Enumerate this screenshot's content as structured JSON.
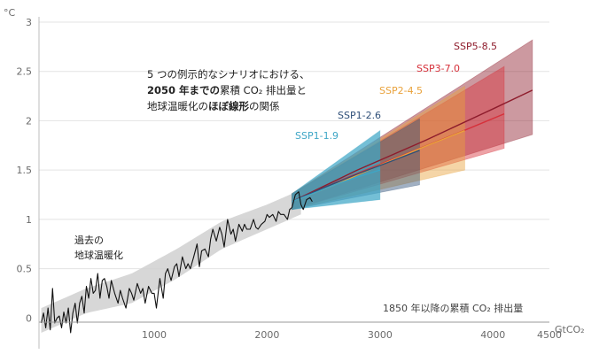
{
  "chart_data": {
    "type": "line",
    "y_unit_label": "°C",
    "x_unit_label": "GtCO₂",
    "x_axis_title": "1850 年以降の累積 CO₂ 排出量",
    "xlim": [
      -20,
      4500
    ],
    "ylim": [
      -0.15,
      3
    ],
    "x_ticks": [
      {
        "value": 1000,
        "label": "1000"
      },
      {
        "value": 2000,
        "label": "2000"
      },
      {
        "value": 3000,
        "label": "3000"
      },
      {
        "value": 4000,
        "label": "4000"
      },
      {
        "value": 4500,
        "label": "4500"
      }
    ],
    "y_ticks": [
      {
        "value": 0,
        "label": "0"
      },
      {
        "value": 0.5,
        "label": "0.5"
      },
      {
        "value": 1,
        "label": "1"
      },
      {
        "value": 1.5,
        "label": "1.5"
      },
      {
        "value": 2,
        "label": "2"
      },
      {
        "value": 2.5,
        "label": "2.5"
      },
      {
        "value": 3,
        "label": "3"
      }
    ],
    "annotation_lines": [
      {
        "parts": [
          {
            "text": "5 つの例示的なシナリオにおける、",
            "bold": false
          }
        ]
      },
      {
        "parts": [
          {
            "text": "2050 年までの",
            "bold": true
          },
          {
            "text": "累積 CO₂ 排出量と",
            "bold": false
          }
        ]
      },
      {
        "parts": [
          {
            "text": "地球温暖化の",
            "bold": false
          },
          {
            "text": "ほぼ線形",
            "bold": true
          },
          {
            "text": "の関係",
            "bold": false
          }
        ]
      }
    ],
    "historical_note_lines": [
      "過去の",
      "地球温暖化"
    ],
    "historical_observed": {
      "x": [
        0,
        20,
        40,
        60,
        80,
        100,
        120,
        140,
        160,
        180,
        200,
        220,
        240,
        260,
        280,
        300,
        320,
        340,
        360,
        380,
        400,
        420,
        440,
        460,
        480,
        500,
        520,
        540,
        560,
        580,
        600,
        620,
        650,
        680,
        700,
        720,
        750,
        780,
        800,
        820,
        850,
        880,
        900,
        920,
        950,
        980,
        1000,
        1020,
        1050,
        1080,
        1100,
        1120,
        1150,
        1180,
        1200,
        1220,
        1250,
        1280,
        1300,
        1320,
        1350,
        1380,
        1400,
        1420,
        1450,
        1480,
        1500,
        1520,
        1550,
        1580,
        1600,
        1620,
        1650,
        1680,
        1700,
        1720,
        1750,
        1780,
        1800,
        1820,
        1850,
        1880,
        1900,
        1920,
        1950,
        1980,
        2000,
        2020,
        2050,
        2080,
        2100,
        2120,
        2150,
        2180,
        2200,
        2220,
        2250,
        2280,
        2300,
        2320,
        2350,
        2380,
        2400
      ],
      "y": [
        -0.05,
        0.05,
        -0.1,
        0.1,
        -0.12,
        0.3,
        -0.05,
        0.0,
        0.02,
        -0.1,
        0.06,
        -0.05,
        0.1,
        -0.15,
        0.05,
        0.15,
        -0.05,
        0.15,
        0.22,
        0.05,
        0.32,
        0.2,
        0.4,
        0.25,
        0.28,
        0.45,
        0.2,
        0.38,
        0.4,
        0.32,
        0.2,
        0.38,
        0.25,
        0.15,
        0.28,
        0.2,
        0.1,
        0.3,
        0.25,
        0.18,
        0.35,
        0.25,
        0.3,
        0.15,
        0.32,
        0.25,
        0.25,
        0.1,
        0.4,
        0.2,
        0.45,
        0.5,
        0.38,
        0.52,
        0.55,
        0.42,
        0.62,
        0.5,
        0.55,
        0.5,
        0.62,
        0.75,
        0.52,
        0.68,
        0.7,
        0.62,
        0.8,
        0.9,
        0.78,
        0.92,
        0.85,
        0.72,
        1.0,
        0.85,
        0.9,
        0.78,
        0.95,
        0.88,
        0.95,
        0.9,
        0.9,
        1.0,
        0.92,
        0.9,
        0.95,
        0.98,
        1.05,
        1.02,
        1.05,
        0.98,
        1.08,
        1.05,
        1.05,
        1.0,
        1.1,
        1.12,
        1.25,
        1.28,
        1.15,
        1.1,
        1.2,
        1.22,
        1.18
      ]
    },
    "historical_range": {
      "x": [
        0,
        400,
        800,
        1200,
        1600,
        2000,
        2300
      ],
      "low": [
        -0.15,
        0.05,
        0.15,
        0.4,
        0.7,
        0.9,
        1.05
      ],
      "high": [
        0.1,
        0.3,
        0.45,
        0.7,
        0.98,
        1.15,
        1.3
      ]
    },
    "series": [
      {
        "name": "SSP1-1.9",
        "color": "#3ea6c6",
        "central": {
          "x": [
            2220,
            2400,
            2600,
            2800,
            3000
          ],
          "y": [
            1.18,
            1.26,
            1.35,
            1.43,
            1.5
          ]
        },
        "band": {
          "x": [
            2220,
            3000
          ],
          "low": [
            1.1,
            1.2
          ],
          "high": [
            1.26,
            1.9
          ]
        }
      },
      {
        "name": "SSP1-2.6",
        "color": "#2f4f78",
        "central": {
          "x": [
            2220,
            2500,
            2800,
            3100,
            3350
          ],
          "y": [
            1.18,
            1.32,
            1.46,
            1.59,
            1.7
          ]
        },
        "band": {
          "x": [
            2220,
            3350
          ],
          "low": [
            1.1,
            1.35
          ],
          "high": [
            1.26,
            2.02
          ]
        }
      },
      {
        "name": "SSP2-4.5",
        "color": "#e9a23b",
        "central": {
          "x": [
            2220,
            2600,
            3000,
            3400,
            3750
          ],
          "y": [
            1.18,
            1.35,
            1.55,
            1.74,
            1.9
          ]
        },
        "band": {
          "x": [
            2220,
            3750
          ],
          "low": [
            1.1,
            1.5
          ],
          "high": [
            1.26,
            2.35
          ]
        }
      },
      {
        "name": "SSP3-7.0",
        "color": "#d6303a",
        "central": {
          "x": [
            2220,
            2700,
            3200,
            3700,
            4100
          ],
          "y": [
            1.18,
            1.42,
            1.65,
            1.88,
            2.07
          ]
        },
        "band": {
          "x": [
            2220,
            4100
          ],
          "low": [
            1.1,
            1.72
          ],
          "high": [
            1.26,
            2.55
          ]
        }
      },
      {
        "name": "SSP5-8.5",
        "color": "#8e1c2c",
        "central": {
          "x": [
            2220,
            2800,
            3400,
            4000,
            4350
          ],
          "y": [
            1.18,
            1.5,
            1.8,
            2.12,
            2.31
          ]
        },
        "band": {
          "x": [
            2220,
            4350
          ],
          "low": [
            1.1,
            1.86
          ],
          "high": [
            1.26,
            2.82
          ]
        }
      }
    ]
  }
}
